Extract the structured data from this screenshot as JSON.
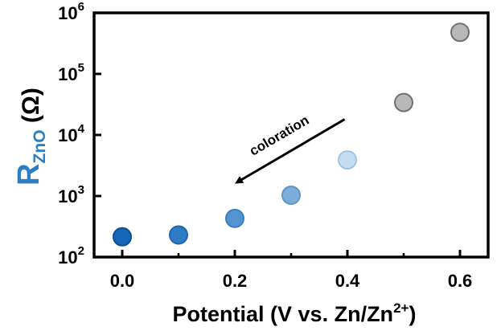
{
  "chart_data": {
    "type": "scatter",
    "title": "",
    "xlabel": {
      "main": "Potential (V vs. Zn/Zn",
      "sup": "2+",
      "close": ")"
    },
    "ylabel": {
      "symbol": "R",
      "subscript": "ZnO",
      "unit": " (Ω)"
    },
    "xlim": [
      -0.05,
      0.65
    ],
    "ylim": [
      100,
      1000000
    ],
    "yscale": "log",
    "grid": false,
    "x_ticks": [
      {
        "value": 0.0,
        "label": "0.0"
      },
      {
        "value": 0.2,
        "label": "0.2"
      },
      {
        "value": 0.4,
        "label": "0.4"
      },
      {
        "value": 0.6,
        "label": "0.6"
      }
    ],
    "y_ticks": [
      {
        "value": 100,
        "base": "10",
        "exp": "2"
      },
      {
        "value": 1000,
        "base": "10",
        "exp": "3"
      },
      {
        "value": 10000,
        "base": "10",
        "exp": "4"
      },
      {
        "value": 100000,
        "base": "10",
        "exp": "5"
      },
      {
        "value": 1000000,
        "base": "10",
        "exp": "6"
      }
    ],
    "points": [
      {
        "x": 0.0,
        "y": 215,
        "fill": "#1565b8",
        "stroke": "#0d4f93"
      },
      {
        "x": 0.1,
        "y": 230,
        "fill": "#2e7cc6",
        "stroke": "#2166a8"
      },
      {
        "x": 0.2,
        "y": 430,
        "fill": "#5294cf",
        "stroke": "#3f80bb"
      },
      {
        "x": 0.3,
        "y": 1030,
        "fill": "#7aaed9",
        "stroke": "#5e97c6"
      },
      {
        "x": 0.4,
        "y": 3900,
        "fill": "#c4dcef",
        "stroke": "#9fc3e0"
      },
      {
        "x": 0.5,
        "y": 34000,
        "fill": "#b8b8b8",
        "stroke": "#6f6f6f"
      },
      {
        "x": 0.6,
        "y": 480000,
        "fill": "#b8b8b8",
        "stroke": "#6f6f6f"
      }
    ],
    "annotation": {
      "text": "coloration",
      "arrow_from": {
        "x": 0.395,
        "y": 18000
      },
      "arrow_to": {
        "x": 0.205,
        "y": 1700
      }
    },
    "colors": {
      "ylabel_symbol": "#2b7fc4",
      "axis": "#000000"
    }
  }
}
